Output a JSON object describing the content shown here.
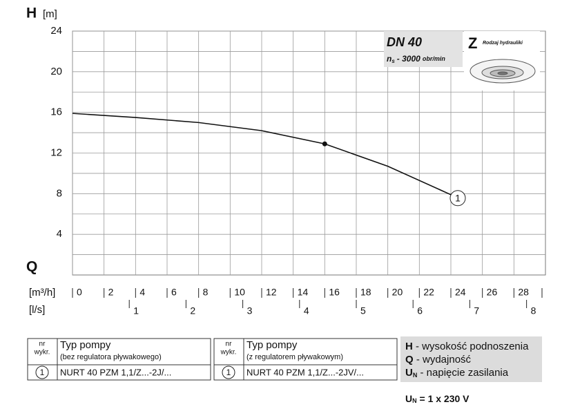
{
  "chart_data": {
    "type": "line",
    "y_symbol": "H",
    "y_unit": "[m]",
    "x_symbol": "Q",
    "x_unit": "[m³/h]",
    "x2_unit": "[l/s]",
    "x": [
      0,
      4,
      8,
      12,
      16,
      20,
      24
    ],
    "series": [
      {
        "name": "1",
        "color": "#111111",
        "values": [
          15.9,
          15.5,
          15.0,
          14.2,
          12.9,
          10.7,
          7.9
        ]
      }
    ],
    "duty_point": {
      "x": 16,
      "y": 12.9
    },
    "xlim": [
      0,
      30
    ],
    "xticks": [
      0,
      2,
      4,
      6,
      8,
      10,
      12,
      14,
      16,
      18,
      20,
      22,
      24,
      26,
      28
    ],
    "x2lim": [
      0,
      8.333
    ],
    "x2ticks": [
      1,
      2,
      3,
      4,
      5,
      6,
      7,
      8
    ],
    "ylim": [
      0,
      24
    ],
    "yticks": [
      4,
      8,
      12,
      16,
      20,
      24
    ],
    "yminorticks": [
      2,
      6,
      10,
      14,
      18,
      22
    ],
    "grid": true,
    "info": {
      "dn": "DN 40",
      "n": "n",
      "n_sub": "s",
      "speed": "- 3000",
      "speed_unit": "obr/min",
      "hydraulics_code": "Z",
      "hydraulics_label": "Rodzaj hydrauliki"
    }
  },
  "tables": [
    {
      "head": [
        "nr",
        "wykr.",
        "Typ pompy",
        "(bez regulatora pływakowego)"
      ],
      "row": [
        "1",
        "NURT 40 PZM 1,1/Z...-2J/..."
      ]
    },
    {
      "head": [
        "nr",
        "wykr.",
        "Typ pompy",
        "(z regulatorem pływakowym)"
      ],
      "row": [
        "1",
        "NURT 40 PZM 1,1/Z...-2JV/..."
      ]
    }
  ],
  "legend": [
    {
      "symbol": "H",
      "sub": "",
      "text": " - wysokość podnoszenia"
    },
    {
      "symbol": "Q",
      "sub": "",
      "text": " - wydajność"
    },
    {
      "symbol": "U",
      "sub": "N",
      "text": " - napięcie zasilania"
    }
  ],
  "voltage": {
    "symbol": "U",
    "sub": "N",
    "text": " = 1 x 230 V"
  }
}
